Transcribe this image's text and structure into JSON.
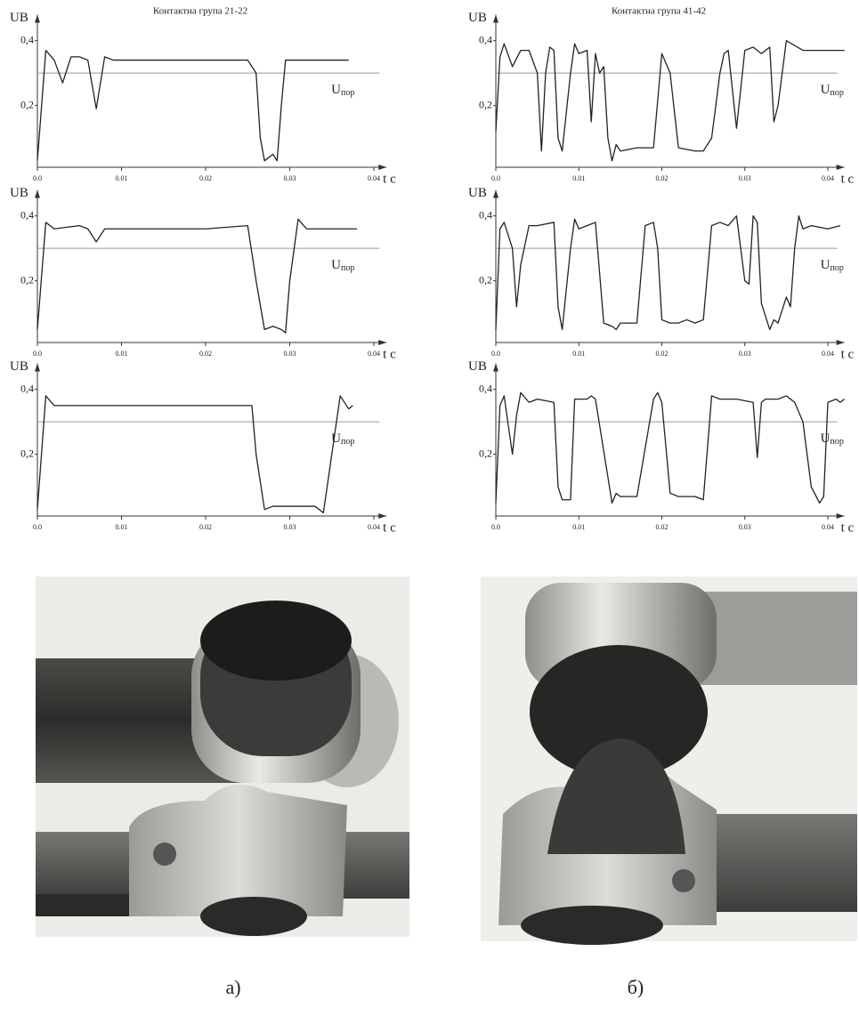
{
  "chart_data": [
    {
      "type": "line",
      "title": "Контактна група 21-22",
      "y_label": "UB",
      "x_label": "t c",
      "x": [
        0,
        0.001,
        0.002,
        0.003,
        0.004,
        0.005,
        0.006,
        0.007,
        0.008,
        0.009,
        0.01,
        0.015,
        0.02,
        0.025,
        0.026,
        0.0265,
        0.027,
        0.028,
        0.0285,
        0.029,
        0.0295,
        0.03,
        0.037
      ],
      "series": [
        {
          "color": "#222222",
          "values": [
            0.03,
            0.37,
            0.34,
            0.27,
            0.35,
            0.35,
            0.34,
            0.19,
            0.35,
            0.34,
            0.34,
            0.34,
            0.34,
            0.34,
            0.3,
            0.1,
            0.03,
            0.05,
            0.03,
            0.2,
            0.34,
            0.34,
            0.34
          ]
        }
      ],
      "threshold": {
        "value": 0.3,
        "label": "U",
        "label_sub": "пор",
        "color": "#999999"
      },
      "xlim": [
        0,
        0.0415
      ],
      "ylim": [
        0.01,
        0.48
      ],
      "xticks": [
        {
          "value": 0,
          "label": "0.0"
        },
        0.01,
        0.02,
        0.03,
        0.04
      ],
      "yticks": [
        {
          "value": 0.2,
          "label": "0,2"
        },
        {
          "value": 0.4,
          "label": "0,4"
        }
      ]
    },
    {
      "type": "line",
      "title": "Контактна група 41-42",
      "y_label": "UB",
      "x_label": "t c",
      "x": [
        0,
        0.0005,
        0.001,
        0.002,
        0.003,
        0.004,
        0.005,
        0.0055,
        0.006,
        0.0065,
        0.007,
        0.0075,
        0.008,
        0.009,
        0.0095,
        0.01,
        0.011,
        0.0115,
        0.012,
        0.0125,
        0.013,
        0.0135,
        0.014,
        0.0145,
        0.015,
        0.017,
        0.019,
        0.02,
        0.021,
        0.022,
        0.024,
        0.025,
        0.026,
        0.027,
        0.0275,
        0.028,
        0.029,
        0.03,
        0.031,
        0.032,
        0.033,
        0.0335,
        0.034,
        0.035,
        0.037,
        0.042
      ],
      "series": [
        {
          "color": "#222222",
          "values": [
            0.12,
            0.35,
            0.39,
            0.32,
            0.37,
            0.37,
            0.3,
            0.06,
            0.3,
            0.38,
            0.37,
            0.1,
            0.06,
            0.3,
            0.39,
            0.36,
            0.37,
            0.15,
            0.36,
            0.3,
            0.32,
            0.1,
            0.03,
            0.08,
            0.06,
            0.07,
            0.07,
            0.36,
            0.3,
            0.07,
            0.06,
            0.06,
            0.1,
            0.3,
            0.36,
            0.37,
            0.13,
            0.37,
            0.38,
            0.36,
            0.38,
            0.15,
            0.2,
            0.4,
            0.37,
            0.37
          ]
        }
      ],
      "threshold": {
        "value": 0.3,
        "label": "U",
        "label_sub": "пор",
        "color": "#999999"
      },
      "xlim": [
        0,
        0.042
      ],
      "ylim": [
        0.01,
        0.48
      ],
      "xticks": [
        {
          "value": 0,
          "label": "0.0"
        },
        0.01,
        0.02,
        0.03,
        0.04
      ],
      "yticks": [
        {
          "value": 0.2,
          "label": "0,2"
        },
        {
          "value": 0.4,
          "label": "0,4"
        }
      ]
    },
    {
      "type": "line",
      "y_label": "UB",
      "x_label": "t c",
      "x": [
        0,
        0.001,
        0.002,
        0.005,
        0.006,
        0.007,
        0.008,
        0.01,
        0.02,
        0.025,
        0.026,
        0.027,
        0.028,
        0.029,
        0.0295,
        0.03,
        0.031,
        0.032,
        0.038
      ],
      "series": [
        {
          "color": "#222222",
          "values": [
            0.05,
            0.38,
            0.36,
            0.37,
            0.36,
            0.32,
            0.36,
            0.36,
            0.36,
            0.37,
            0.2,
            0.05,
            0.06,
            0.05,
            0.04,
            0.2,
            0.39,
            0.36,
            0.36
          ]
        }
      ],
      "threshold": {
        "value": 0.3,
        "label": "U",
        "label_sub": "пор",
        "color": "#999999"
      },
      "xlim": [
        0,
        0.0415
      ],
      "ylim": [
        0.01,
        0.48
      ],
      "xticks": [
        {
          "value": 0,
          "label": "0.0"
        },
        0.01,
        0.02,
        0.03,
        0.04
      ],
      "yticks": [
        {
          "value": 0.2,
          "label": "0,2"
        },
        {
          "value": 0.4,
          "label": "0,4"
        }
      ]
    },
    {
      "type": "line",
      "y_label": "UB",
      "x_label": "t c",
      "x": [
        0,
        0.0005,
        0.001,
        0.002,
        0.0025,
        0.003,
        0.004,
        0.005,
        0.007,
        0.0075,
        0.008,
        0.009,
        0.0095,
        0.01,
        0.011,
        0.012,
        0.013,
        0.014,
        0.0145,
        0.015,
        0.017,
        0.018,
        0.019,
        0.0195,
        0.02,
        0.021,
        0.022,
        0.023,
        0.024,
        0.025,
        0.026,
        0.027,
        0.028,
        0.029,
        0.03,
        0.0305,
        0.031,
        0.0315,
        0.032,
        0.033,
        0.0335,
        0.034,
        0.035,
        0.0355,
        0.036,
        0.0365,
        0.037,
        0.038,
        0.04,
        0.0415
      ],
      "series": [
        {
          "color": "#222222",
          "values": [
            0.05,
            0.36,
            0.38,
            0.3,
            0.12,
            0.25,
            0.37,
            0.37,
            0.38,
            0.12,
            0.05,
            0.3,
            0.39,
            0.36,
            0.37,
            0.38,
            0.07,
            0.06,
            0.05,
            0.07,
            0.07,
            0.37,
            0.38,
            0.3,
            0.08,
            0.07,
            0.07,
            0.08,
            0.07,
            0.08,
            0.37,
            0.38,
            0.37,
            0.4,
            0.2,
            0.19,
            0.4,
            0.38,
            0.13,
            0.05,
            0.08,
            0.07,
            0.15,
            0.12,
            0.3,
            0.4,
            0.36,
            0.37,
            0.36,
            0.37
          ]
        }
      ],
      "threshold": {
        "value": 0.3,
        "label": "U",
        "label_sub": "пор",
        "color": "#999999"
      },
      "xlim": [
        0,
        0.042
      ],
      "ylim": [
        0.01,
        0.48
      ],
      "xticks": [
        {
          "value": 0,
          "label": "0.0"
        },
        0.01,
        0.02,
        0.03,
        0.04
      ],
      "yticks": [
        {
          "value": 0.2,
          "label": "0,2"
        },
        {
          "value": 0.4,
          "label": "0,4"
        }
      ]
    },
    {
      "type": "line",
      "y_label": "UB",
      "x_label": "t c",
      "x": [
        0,
        0.001,
        0.002,
        0.01,
        0.02,
        0.0255,
        0.026,
        0.027,
        0.028,
        0.03,
        0.033,
        0.034,
        0.035,
        0.036,
        0.037,
        0.0375
      ],
      "series": [
        {
          "color": "#222222",
          "values": [
            0.03,
            0.38,
            0.35,
            0.35,
            0.35,
            0.35,
            0.2,
            0.03,
            0.04,
            0.04,
            0.04,
            0.02,
            0.2,
            0.38,
            0.34,
            0.35
          ]
        }
      ],
      "threshold": {
        "value": 0.3,
        "label": "U",
        "label_sub": "пор",
        "color": "#999999"
      },
      "xlim": [
        0,
        0.0415
      ],
      "ylim": [
        0.01,
        0.48
      ],
      "xticks": [
        {
          "value": 0,
          "label": "0.0"
        },
        0.01,
        0.02,
        0.03,
        0.04
      ],
      "yticks": [
        {
          "value": 0.2,
          "label": "0,2"
        },
        {
          "value": 0.4,
          "label": "0,4"
        }
      ]
    },
    {
      "type": "line",
      "y_label": "UB",
      "x_label": "t c",
      "x": [
        0,
        0.0005,
        0.001,
        0.002,
        0.0025,
        0.003,
        0.004,
        0.005,
        0.007,
        0.0075,
        0.008,
        0.009,
        0.0095,
        0.01,
        0.011,
        0.0115,
        0.012,
        0.014,
        0.0145,
        0.015,
        0.017,
        0.019,
        0.0195,
        0.02,
        0.021,
        0.022,
        0.024,
        0.025,
        0.026,
        0.027,
        0.029,
        0.031,
        0.0315,
        0.032,
        0.0325,
        0.033,
        0.034,
        0.035,
        0.036,
        0.037,
        0.038,
        0.039,
        0.0395,
        0.04,
        0.041,
        0.0415,
        0.042
      ],
      "series": [
        {
          "color": "#222222",
          "values": [
            0.05,
            0.35,
            0.38,
            0.2,
            0.32,
            0.39,
            0.36,
            0.37,
            0.36,
            0.1,
            0.06,
            0.06,
            0.37,
            0.37,
            0.37,
            0.38,
            0.37,
            0.05,
            0.08,
            0.07,
            0.07,
            0.37,
            0.39,
            0.36,
            0.08,
            0.07,
            0.07,
            0.06,
            0.38,
            0.37,
            0.37,
            0.36,
            0.19,
            0.36,
            0.37,
            0.37,
            0.37,
            0.38,
            0.36,
            0.3,
            0.1,
            0.05,
            0.07,
            0.36,
            0.37,
            0.36,
            0.37
          ]
        }
      ],
      "threshold": {
        "value": 0.3,
        "label": "U",
        "label_sub": "пор",
        "color": "#999999"
      },
      "xlim": [
        0,
        0.042
      ],
      "ylim": [
        0.01,
        0.48
      ],
      "xticks": [
        {
          "value": 0,
          "label": "0.0"
        },
        0.01,
        0.02,
        0.03,
        0.04
      ],
      "yticks": [
        {
          "value": 0.2,
          "label": "0,2"
        },
        {
          "value": 0.4,
          "label": "0,4"
        }
      ]
    }
  ],
  "photos": [
    {
      "caption": "а)"
    },
    {
      "caption": "б)"
    }
  ]
}
